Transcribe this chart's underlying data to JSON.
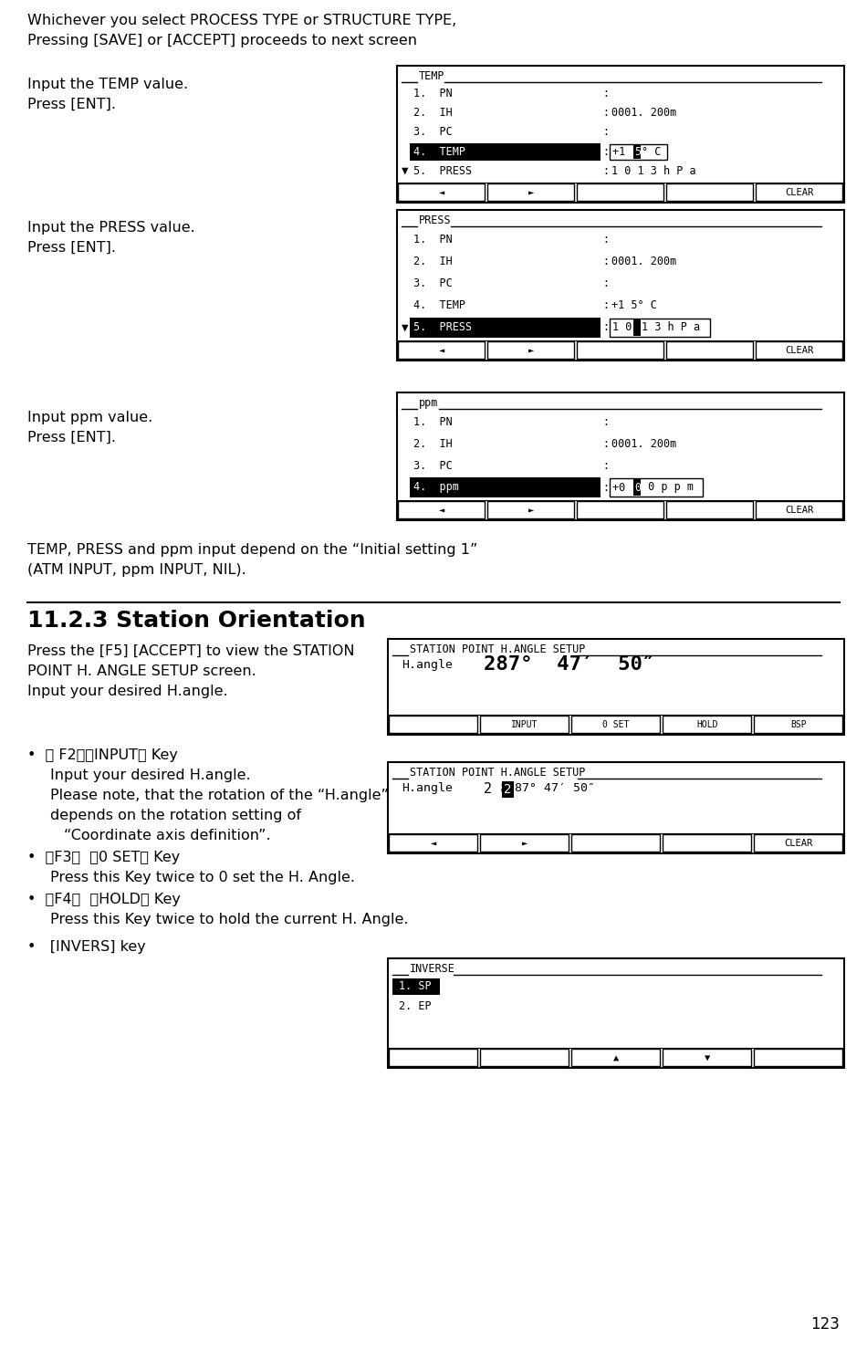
{
  "bg_color": "#ffffff",
  "text_color": "#000000",
  "page_number": "123",
  "intro_line1": "Whichever you select PROCESS TYPE or STRUCTURE TYPE,",
  "intro_line2": "Pressing [SAVE] or [ACCEPT] proceeds to next screen",
  "screen1_label_line1": "Input the TEMP value.",
  "screen1_label_line2": "Press [ENT].",
  "screen2_label_line1": "Input the PRESS value.",
  "screen2_label_line2": "Press [ENT].",
  "screen3_label_line1": "Input ppm value.",
  "screen3_label_line2": "Press [ENT].",
  "note_line1": "TEMP, PRESS and ppm input depend on the “Initial setting 1”",
  "note_line2": "(ATM INPUT, ppm INPUT, NIL).",
  "section_title": "11.2.3 Station Orientation",
  "section_desc_line1": "Press the [F5] [ACCEPT] to view the STATION",
  "section_desc_line2": "POINT H. ANGLE SETUP screen.",
  "section_desc_line3": "Input your desired H.angle.",
  "bullet1_head": "•  ［ F2］［INPUT］ Key",
  "bullet1_l1": "Input your desired H.angle.",
  "bullet1_l2": "Please note, that the rotation of the “H.angle”",
  "bullet1_l3": "depends on the rotation setting of",
  "bullet1_l4": "“Coordinate axis definition”.",
  "bullet2_head": "•  ［F3］  ［0 SET］ Key",
  "bullet2_l1": "Press this Key twice to 0 set the H. Angle.",
  "bullet3_head": "•  ［F4］  ［HOLD］ Key",
  "bullet3_l1": "Press this Key twice to hold the current H. Angle.",
  "bullet4_head": "•   [INVERS] key"
}
